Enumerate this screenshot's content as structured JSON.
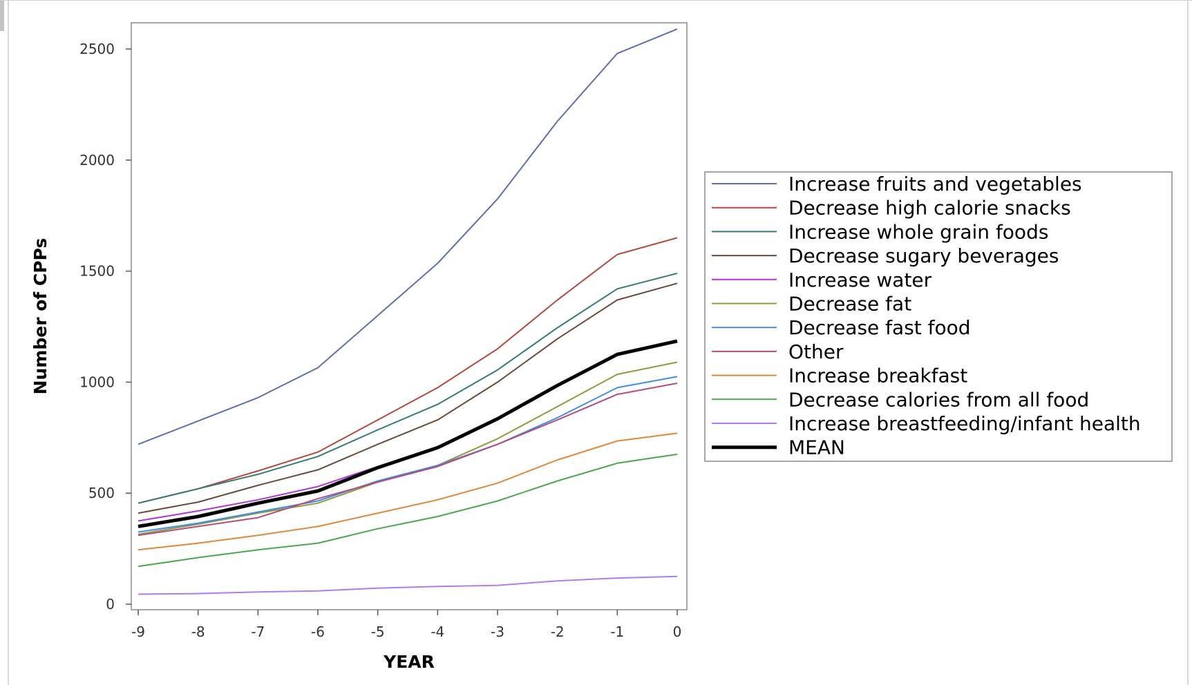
{
  "chart_data": {
    "type": "line",
    "title": "",
    "xlabel": "YEAR",
    "ylabel": "Number of CPPs",
    "x": [
      -9,
      -8,
      -7,
      -6,
      -5,
      -4,
      -3,
      -2,
      -1,
      0
    ],
    "x_ticks": [
      "-9",
      "-8",
      "-7",
      "-6",
      "-5",
      "-4",
      "-3",
      "-2",
      "-1",
      "0"
    ],
    "y_ticks": [
      "0",
      "500",
      "1000",
      "1500",
      "2000",
      "2500"
    ],
    "xlim": [
      -9,
      0
    ],
    "ylim": [
      0,
      2500
    ],
    "grid": false,
    "legend_position": "right",
    "series": [
      {
        "name": "Increase fruits and vegetables",
        "color": "#5b6fb0",
        "width": 2,
        "values": [
          720,
          825,
          930,
          1065,
          1300,
          1535,
          1825,
          2175,
          2480,
          2590
        ]
      },
      {
        "name": "Decrease high calorie snacks",
        "color": "#b5483d",
        "width": 2,
        "values": [
          455,
          520,
          600,
          685,
          830,
          975,
          1150,
          1370,
          1575,
          1650
        ]
      },
      {
        "name": "Increase whole grain foods",
        "color": "#357a72",
        "width": 2,
        "values": [
          455,
          520,
          585,
          665,
          785,
          900,
          1055,
          1245,
          1420,
          1490
        ]
      },
      {
        "name": "Decrease sugary beverages",
        "color": "#6b4a34",
        "width": 2,
        "values": [
          410,
          460,
          535,
          605,
          720,
          830,
          1000,
          1195,
          1370,
          1445
        ]
      },
      {
        "name": "Increase  water",
        "color": "#b134d6",
        "width": 2,
        "values": [
          375,
          420,
          470,
          530,
          620,
          705,
          840,
          985,
          1120,
          1185
        ]
      },
      {
        "name": "Decrease fat",
        "color": "#8f9a3c",
        "width": 2,
        "values": [
          315,
          360,
          410,
          455,
          550,
          625,
          745,
          890,
          1035,
          1090
        ]
      },
      {
        "name": "Decrease fast food",
        "color": "#3c8ee6",
        "width": 2,
        "values": [
          325,
          365,
          415,
          465,
          555,
          625,
          720,
          840,
          975,
          1025
        ]
      },
      {
        "name": "Other",
        "color": "#b94a7a",
        "width": 2,
        "values": [
          310,
          350,
          390,
          475,
          550,
          620,
          720,
          830,
          945,
          995
        ]
      },
      {
        "name": "Increase breakfast",
        "color": "#e0873a",
        "width": 2,
        "values": [
          245,
          275,
          310,
          350,
          410,
          470,
          545,
          650,
          735,
          770
        ]
      },
      {
        "name": "Decrease calories from all food",
        "color": "#4aa84c",
        "width": 2,
        "values": [
          170,
          210,
          245,
          275,
          340,
          395,
          465,
          555,
          635,
          675
        ]
      },
      {
        "name": "Increase breastfeeding/infant health",
        "color": "#b27cf0",
        "width": 2,
        "values": [
          45,
          48,
          55,
          60,
          72,
          80,
          85,
          105,
          118,
          125
        ]
      },
      {
        "name": "MEAN",
        "color": "#000000",
        "width": 5,
        "values": [
          350,
          395,
          455,
          510,
          615,
          705,
          835,
          985,
          1125,
          1185
        ]
      }
    ]
  }
}
